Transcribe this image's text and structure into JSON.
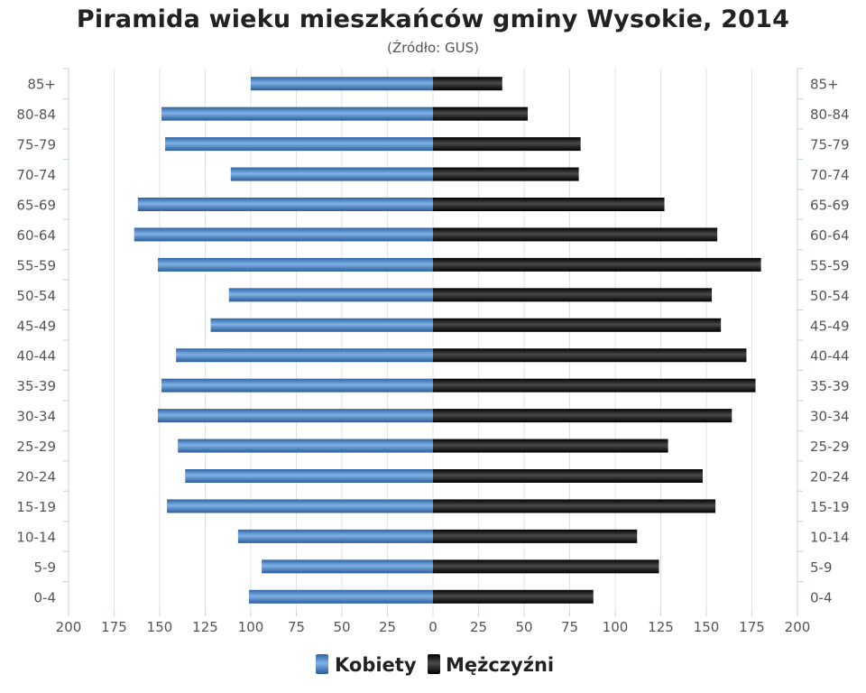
{
  "chart_data": {
    "type": "bar",
    "orientation": "horizontal-population-pyramid",
    "title": "Piramida wieku mieszkańców gminy Wysokie, 2014",
    "subtitle": "(Źródło: GUS)",
    "categories": [
      "0-4",
      "5-9",
      "10-14",
      "15-19",
      "20-24",
      "25-29",
      "30-34",
      "35-39",
      "40-44",
      "45-49",
      "50-54",
      "55-59",
      "60-64",
      "65-69",
      "70-74",
      "75-79",
      "80-84",
      "85+"
    ],
    "series": [
      {
        "name": "Kobiety",
        "color": "#4a86c5",
        "side": "left",
        "values": [
          101,
          94,
          107,
          146,
          136,
          140,
          151,
          149,
          141,
          122,
          112,
          151,
          164,
          162,
          111,
          147,
          149,
          100
        ]
      },
      {
        "name": "Mężczyźni",
        "color": "#1a1a1a",
        "side": "right",
        "values": [
          88,
          124,
          112,
          155,
          148,
          129,
          164,
          177,
          172,
          158,
          153,
          180,
          156,
          127,
          80,
          81,
          52,
          38
        ]
      }
    ],
    "x_ticks": [
      "200",
      "175",
      "150",
      "125",
      "100",
      "75",
      "50",
      "25",
      "0",
      "25",
      "50",
      "75",
      "100",
      "125",
      "150",
      "175",
      "200"
    ],
    "xlim": [
      -200,
      200
    ],
    "grid": true,
    "legend_position": "bottom-center"
  }
}
